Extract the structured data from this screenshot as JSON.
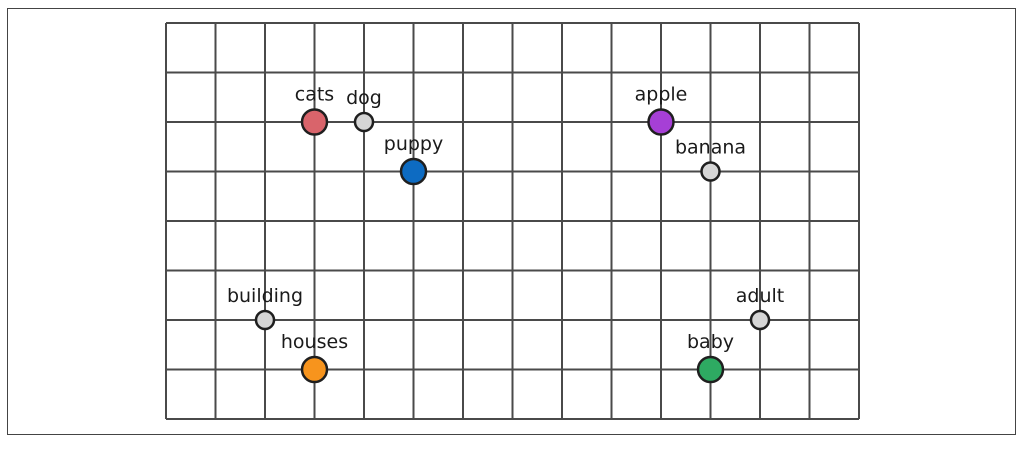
{
  "grid": {
    "columns": 14,
    "rows": 8,
    "line_color": "#4a4a4a"
  },
  "points": [
    {
      "label": "cats",
      "col": 3,
      "row": 2,
      "size": "large",
      "color": "#d9646b"
    },
    {
      "label": "dog",
      "col": 4,
      "row": 2,
      "size": "small",
      "color": "#d6d6d6"
    },
    {
      "label": "puppy",
      "col": 5,
      "row": 3,
      "size": "large",
      "color": "#0d6bc2"
    },
    {
      "label": "apple",
      "col": 10,
      "row": 2,
      "size": "large",
      "color": "#a63fd6"
    },
    {
      "label": "banana",
      "col": 11,
      "row": 3,
      "size": "small",
      "color": "#d6d6d6"
    },
    {
      "label": "building",
      "col": 2,
      "row": 6,
      "size": "small",
      "color": "#d6d6d6"
    },
    {
      "label": "houses",
      "col": 3,
      "row": 7,
      "size": "large",
      "color": "#f7941d"
    },
    {
      "label": "adult",
      "col": 12,
      "row": 6,
      "size": "small",
      "color": "#d6d6d6"
    },
    {
      "label": "baby",
      "col": 11,
      "row": 7,
      "size": "large",
      "color": "#2eaa62"
    }
  ]
}
